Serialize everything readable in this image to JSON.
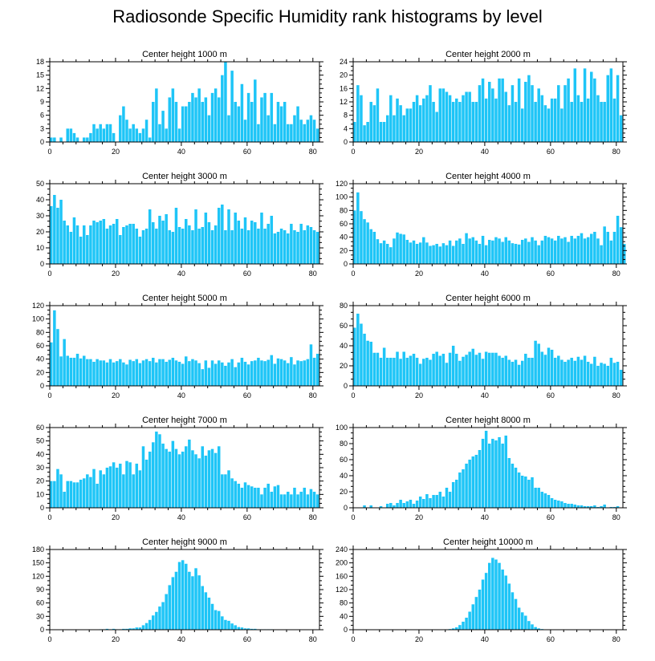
{
  "page": {
    "title": "Radiosonde Specific Humidity rank histograms by level"
  },
  "bar_color": "#1ec5f7",
  "chart_data": [
    {
      "type": "bar",
      "title": "Center height 1000 m",
      "xlim": [
        0,
        82
      ],
      "xticks": [
        0,
        20,
        40,
        60,
        80
      ],
      "ylim": [
        0,
        18
      ],
      "yticks": [
        0,
        3,
        6,
        9,
        12,
        15,
        18
      ],
      "values": [
        1,
        1,
        0,
        1,
        0,
        3,
        3,
        2,
        1,
        0,
        1,
        1,
        2,
        4,
        3,
        4,
        3,
        4,
        4,
        2,
        0,
        6,
        8,
        5,
        3,
        4,
        3,
        2,
        3,
        5,
        1,
        9,
        12,
        4,
        7,
        3,
        10,
        12,
        9,
        3,
        8,
        8,
        9,
        11,
        10,
        12,
        9,
        10,
        6,
        11,
        12,
        10,
        15,
        18,
        6,
        16,
        9,
        8,
        13,
        5,
        11,
        9,
        14,
        4,
        10,
        11,
        6,
        11,
        4,
        9,
        8,
        9,
        4,
        4,
        6,
        8,
        5,
        4,
        5,
        6,
        5,
        3
      ]
    },
    {
      "type": "bar",
      "title": "Center height 2000 m",
      "xlim": [
        0,
        82
      ],
      "xticks": [
        0,
        20,
        40,
        60,
        80
      ],
      "ylim": [
        0,
        24
      ],
      "yticks": [
        0,
        4,
        8,
        12,
        16,
        20,
        24
      ],
      "values": [
        6,
        17,
        14,
        5,
        6,
        12,
        11,
        16,
        6,
        6,
        8,
        14,
        8,
        13,
        11,
        8,
        10,
        10,
        12,
        14,
        11,
        13,
        14,
        17,
        12,
        9,
        16,
        16,
        15,
        14,
        12,
        13,
        12,
        14,
        15,
        15,
        12,
        12,
        17,
        19,
        13,
        18,
        16,
        13,
        19,
        19,
        15,
        11,
        17,
        12,
        19,
        10,
        18,
        20,
        17,
        12,
        16,
        14,
        11,
        10,
        13,
        13,
        17,
        10,
        17,
        19,
        12,
        22,
        14,
        12,
        22,
        13,
        21,
        19,
        14,
        12,
        12,
        20,
        22,
        13,
        20,
        8
      ]
    },
    {
      "type": "bar",
      "title": "Center height 3000 m",
      "xlim": [
        0,
        82
      ],
      "xticks": [
        0,
        20,
        40,
        60,
        80
      ],
      "ylim": [
        0,
        50
      ],
      "yticks": [
        0,
        10,
        20,
        30,
        40,
        50
      ],
      "values": [
        36,
        43,
        35,
        40,
        27,
        24,
        20,
        29,
        24,
        17,
        24,
        18,
        24,
        27,
        26,
        27,
        28,
        22,
        24,
        25,
        28,
        18,
        23,
        24,
        25,
        25,
        22,
        17,
        21,
        22,
        34,
        26,
        22,
        30,
        27,
        31,
        21,
        20,
        35,
        23,
        22,
        28,
        24,
        21,
        34,
        22,
        23,
        32,
        26,
        21,
        24,
        35,
        37,
        21,
        34,
        21,
        32,
        27,
        22,
        29,
        21,
        27,
        26,
        22,
        32,
        22,
        25,
        30,
        19,
        20,
        22,
        21,
        19,
        25,
        21,
        20,
        25,
        21,
        24,
        23,
        21,
        20
      ]
    },
    {
      "type": "bar",
      "title": "Center height 4000 m",
      "xlim": [
        0,
        82
      ],
      "xticks": [
        0,
        20,
        40,
        60,
        80
      ],
      "ylim": [
        0,
        120
      ],
      "yticks": [
        0,
        20,
        40,
        60,
        80,
        100,
        120
      ],
      "values": [
        80,
        107,
        79,
        67,
        62,
        52,
        48,
        37,
        31,
        35,
        30,
        25,
        38,
        47,
        45,
        44,
        36,
        32,
        35,
        30,
        32,
        40,
        32,
        27,
        28,
        30,
        26,
        31,
        28,
        35,
        27,
        35,
        38,
        30,
        46,
        38,
        40,
        35,
        30,
        42,
        28,
        36,
        35,
        40,
        38,
        33,
        40,
        35,
        31,
        30,
        29,
        36,
        38,
        33,
        40,
        35,
        28,
        35,
        42,
        40,
        38,
        35,
        42,
        38,
        40,
        33,
        42,
        38,
        42,
        46,
        38,
        40,
        45,
        48,
        38,
        28,
        56,
        48,
        35,
        48,
        72,
        55,
        30
      ]
    },
    {
      "type": "bar",
      "title": "Center height 5000 m",
      "xlim": [
        0,
        82
      ],
      "xticks": [
        0,
        20,
        40,
        60,
        80
      ],
      "ylim": [
        0,
        120
      ],
      "yticks": [
        0,
        20,
        40,
        60,
        80,
        100,
        120
      ],
      "values": [
        65,
        113,
        85,
        44,
        70,
        45,
        42,
        42,
        48,
        41,
        45,
        40,
        40,
        36,
        40,
        38,
        38,
        35,
        40,
        35,
        37,
        40,
        35,
        32,
        39,
        37,
        40,
        34,
        38,
        40,
        37,
        42,
        35,
        40,
        40,
        36,
        39,
        42,
        38,
        36,
        33,
        44,
        37,
        40,
        38,
        34,
        25,
        38,
        27,
        38,
        33,
        38,
        35,
        30,
        35,
        40,
        28,
        35,
        42,
        36,
        32,
        37,
        38,
        42,
        38,
        37,
        39,
        46,
        33,
        41,
        40,
        38,
        34,
        43,
        32,
        38,
        37,
        38,
        40,
        62,
        42,
        48
      ]
    },
    {
      "type": "bar",
      "title": "Center height 6000 m",
      "xlim": [
        0,
        82
      ],
      "xticks": [
        0,
        20,
        40,
        60,
        80
      ],
      "ylim": [
        0,
        80
      ],
      "yticks": [
        0,
        20,
        40,
        60,
        80
      ],
      "values": [
        58,
        72,
        62,
        52,
        45,
        44,
        33,
        33,
        28,
        38,
        28,
        28,
        28,
        34,
        27,
        34,
        28,
        30,
        32,
        28,
        22,
        27,
        28,
        26,
        32,
        34,
        30,
        32,
        23,
        33,
        40,
        32,
        25,
        29,
        31,
        34,
        37,
        31,
        33,
        27,
        34,
        33,
        33,
        33,
        30,
        28,
        30,
        26,
        24,
        26,
        21,
        25,
        32,
        28,
        28,
        45,
        42,
        34,
        31,
        38,
        36,
        28,
        30,
        26,
        24,
        26,
        28,
        25,
        29,
        26,
        30,
        24,
        22,
        29,
        20,
        23,
        22,
        20,
        28,
        23,
        24,
        16
      ]
    },
    {
      "type": "bar",
      "title": "Center height 7000 m",
      "xlim": [
        0,
        82
      ],
      "xticks": [
        0,
        20,
        40,
        60,
        80
      ],
      "ylim": [
        0,
        60
      ],
      "yticks": [
        0,
        10,
        20,
        30,
        40,
        50,
        60
      ],
      "values": [
        20,
        20,
        29,
        25,
        12,
        20,
        20,
        19,
        19,
        21,
        22,
        25,
        23,
        29,
        18,
        28,
        25,
        30,
        31,
        34,
        30,
        33,
        25,
        35,
        34,
        25,
        33,
        28,
        46,
        36,
        42,
        49,
        57,
        55,
        48,
        44,
        42,
        50,
        44,
        40,
        42,
        46,
        51,
        43,
        40,
        37,
        46,
        39,
        43,
        44,
        41,
        46,
        25,
        25,
        28,
        22,
        20,
        18,
        15,
        19,
        17,
        16,
        15,
        15,
        10,
        15,
        18,
        12,
        16,
        17,
        10,
        10,
        12,
        10,
        15,
        10,
        12,
        15,
        10,
        14,
        12,
        10
      ]
    },
    {
      "type": "bar",
      "title": "Center height 8000 m",
      "xlim": [
        0,
        82
      ],
      "xticks": [
        0,
        20,
        40,
        60,
        80
      ],
      "ylim": [
        0,
        100
      ],
      "yticks": [
        0,
        20,
        40,
        60,
        80,
        100
      ],
      "values": [
        0,
        0,
        0,
        3,
        0,
        3,
        0,
        0,
        2,
        0,
        5,
        6,
        3,
        6,
        10,
        6,
        8,
        10,
        5,
        9,
        14,
        11,
        17,
        12,
        16,
        16,
        20,
        14,
        25,
        20,
        32,
        35,
        44,
        48,
        55,
        60,
        64,
        66,
        72,
        86,
        96,
        80,
        86,
        84,
        88,
        80,
        90,
        62,
        55,
        50,
        44,
        40,
        39,
        35,
        38,
        25,
        25,
        20,
        18,
        16,
        12,
        10,
        9,
        8,
        6,
        5,
        5,
        4,
        3,
        3,
        2,
        2,
        2,
        3,
        1,
        2,
        4,
        0,
        1,
        1,
        2,
        0
      ]
    },
    {
      "type": "bar",
      "title": "Center height 9000 m",
      "xlim": [
        0,
        82
      ],
      "xticks": [
        0,
        20,
        40,
        60,
        80
      ],
      "ylim": [
        0,
        180
      ],
      "yticks": [
        0,
        30,
        60,
        90,
        120,
        150,
        180
      ],
      "values": [
        0,
        0,
        0,
        0,
        0,
        0,
        0,
        0,
        0,
        0,
        0,
        0,
        0,
        0,
        0,
        1,
        1,
        2,
        1,
        2,
        1,
        1,
        2,
        2,
        3,
        3,
        5,
        5,
        10,
        15,
        22,
        32,
        40,
        52,
        62,
        80,
        100,
        118,
        130,
        152,
        156,
        148,
        130,
        120,
        138,
        122,
        98,
        84,
        72,
        58,
        44,
        42,
        30,
        22,
        20,
        14,
        10,
        6,
        5,
        3,
        3,
        2,
        2,
        1,
        1,
        1,
        1,
        1,
        0,
        0,
        0,
        0,
        0,
        0,
        0,
        0,
        0,
        0,
        0,
        0,
        0,
        0
      ]
    },
    {
      "type": "bar",
      "title": "Center height 10000 m",
      "xlim": [
        0,
        82
      ],
      "xticks": [
        0,
        20,
        40,
        60,
        80
      ],
      "ylim": [
        0,
        240
      ],
      "yticks": [
        0,
        40,
        80,
        120,
        160,
        200,
        240
      ],
      "values": [
        0,
        0,
        0,
        0,
        0,
        0,
        0,
        0,
        0,
        0,
        0,
        0,
        0,
        0,
        0,
        0,
        0,
        0,
        0,
        0,
        0,
        0,
        0,
        0,
        0,
        0,
        0,
        0,
        0,
        2,
        4,
        7,
        14,
        24,
        36,
        54,
        76,
        98,
        120,
        150,
        170,
        200,
        215,
        210,
        200,
        180,
        162,
        138,
        112,
        92,
        66,
        52,
        42,
        26,
        16,
        8,
        4,
        2,
        1,
        0,
        0,
        0,
        0,
        0,
        0,
        0,
        0,
        0,
        0,
        0,
        0,
        0,
        0,
        0,
        0,
        0,
        0,
        0,
        0,
        0,
        0,
        0
      ]
    }
  ]
}
